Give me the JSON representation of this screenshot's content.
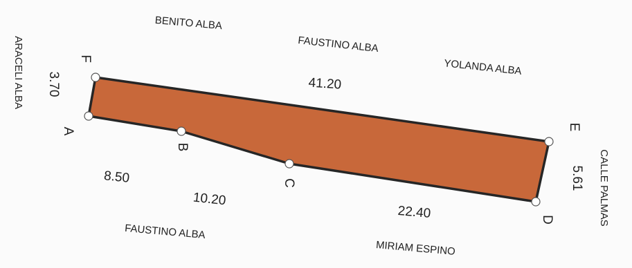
{
  "colors": {
    "parcel_fill": "#c8683a",
    "parcel_stroke": "#262626",
    "vertex_marker": "#ffffff"
  },
  "owners": {
    "north_1": "BENITO ALBA",
    "north_2": "FAUSTINO ALBA",
    "north_3": "YOLANDA ALBA",
    "west": "ARACELI ALBA",
    "east": "CALLE PALMAS",
    "south_1": "FAUSTINO ALBA",
    "south_2": "MIRIAM ESPINO"
  },
  "dimensions": {
    "FA": "3.70",
    "FE": "41.20",
    "AB": "8.50",
    "BC": "10.20",
    "CD": "22.40",
    "ED": "5.61"
  },
  "vertices": {
    "A": "A",
    "B": "B",
    "C": "C",
    "D": "D",
    "E": "E",
    "F": "F"
  }
}
